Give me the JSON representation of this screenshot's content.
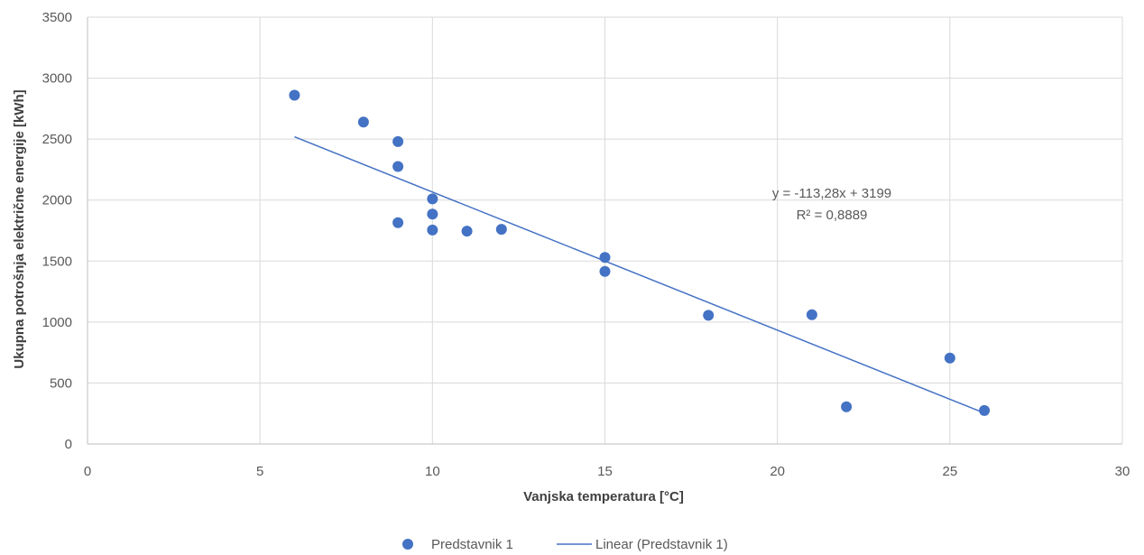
{
  "chart_data": {
    "type": "scatter",
    "xlabel": "Vanjska temperatura [°C]",
    "ylabel": "Ukupna potrošnja električne energije [kWh]",
    "xlim": [
      0,
      30
    ],
    "ylim": [
      0,
      3500
    ],
    "xticks": [
      0,
      5,
      10,
      15,
      20,
      25,
      30
    ],
    "yticks": [
      0,
      500,
      1000,
      1500,
      2000,
      2500,
      3000,
      3500
    ],
    "grid": true,
    "legend_position": "bottom",
    "series": [
      {
        "name": "Predstavnik 1",
        "color": "#4472C4",
        "points": [
          {
            "x": 6,
            "y": 2860
          },
          {
            "x": 8,
            "y": 2640
          },
          {
            "x": 9,
            "y": 2480
          },
          {
            "x": 9,
            "y": 2275
          },
          {
            "x": 9,
            "y": 1815
          },
          {
            "x": 10,
            "y": 2010
          },
          {
            "x": 10,
            "y": 1885
          },
          {
            "x": 10,
            "y": 1755
          },
          {
            "x": 11,
            "y": 1745
          },
          {
            "x": 12,
            "y": 1760
          },
          {
            "x": 15,
            "y": 1530
          },
          {
            "x": 15,
            "y": 1415
          },
          {
            "x": 18,
            "y": 1055
          },
          {
            "x": 21,
            "y": 1060
          },
          {
            "x": 22,
            "y": 305
          },
          {
            "x": 25,
            "y": 705
          },
          {
            "x": 26,
            "y": 275
          }
        ]
      }
    ],
    "trendline": {
      "name": "Linear (Predstavnik 1)",
      "type": "linear",
      "slope": -113.28,
      "intercept": 3199,
      "x_range": [
        6,
        26
      ],
      "equation_label": "y = -113,28x + 3199",
      "r2_label": "R² = 0,8889"
    }
  }
}
